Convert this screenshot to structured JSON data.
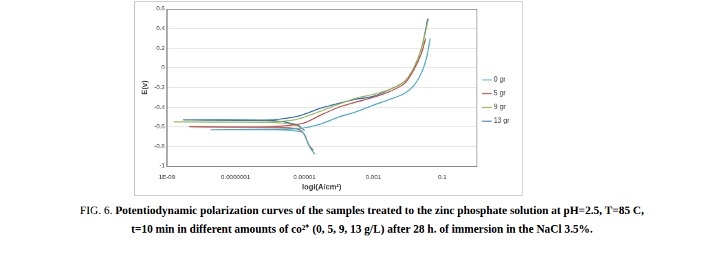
{
  "chart_data": {
    "type": "line",
    "x_label": "logi(A/cm²)",
    "y_label": "E(v)",
    "log": "x",
    "grid": true,
    "legend": "right",
    "xlim": [
      1e-09,
      1
    ],
    "xticks": [
      {
        "value": 1e-09,
        "label": "1E-09"
      },
      {
        "value": 1e-07,
        "label": "0.0000001"
      },
      {
        "value": 1e-05,
        "label": "0.00001"
      },
      {
        "value": 0.001,
        "label": "0.001"
      },
      {
        "value": 0.1,
        "label": "0.1"
      }
    ],
    "ylim": [
      -1,
      0.6
    ],
    "yticks": [
      -1,
      -0.8,
      -0.6,
      -0.4,
      -0.2,
      0,
      0.2,
      0.4,
      0.6
    ],
    "series": [
      {
        "name": "0 gr",
        "color": "#4bacc6",
        "x": [
          2e-05,
          1.5e-05,
          1.1e-05,
          9e-06,
          5e-06,
          1e-06,
          1.9e-08,
          1e-06,
          5e-06,
          1e-05,
          3e-05,
          0.0001,
          0.0003,
          0.001,
          0.003,
          0.008,
          0.015,
          0.025,
          0.035,
          0.045
        ],
        "values": [
          -0.88,
          -0.82,
          -0.72,
          -0.66,
          -0.64,
          -0.63,
          -0.63,
          -0.625,
          -0.62,
          -0.61,
          -0.57,
          -0.5,
          -0.45,
          -0.38,
          -0.32,
          -0.26,
          -0.18,
          -0.05,
          0.1,
          0.3
        ]
      },
      {
        "name": "5 gr",
        "color": "#c0504d",
        "x": [
          1.8e-05,
          1.3e-05,
          1e-05,
          6e-06,
          1e-06,
          4.5e-09,
          1e-06,
          5e-06,
          1e-05,
          3e-05,
          0.0001,
          0.0003,
          0.001,
          0.003,
          0.008,
          0.015,
          0.025,
          0.033
        ],
        "values": [
          -0.84,
          -0.78,
          -0.68,
          -0.62,
          -0.605,
          -0.6,
          -0.6,
          -0.58,
          -0.56,
          -0.48,
          -0.4,
          -0.35,
          -0.3,
          -0.24,
          -0.16,
          -0.02,
          0.15,
          0.3
        ]
      },
      {
        "name": "9 gr",
        "color": "#9bbb59",
        "x": [
          9e-06,
          5e-06,
          1e-06,
          1.6e-09,
          1e-06,
          5e-06,
          1e-05,
          3e-05,
          0.0001,
          0.0003,
          0.001,
          0.003,
          0.008,
          0.015,
          0.025,
          0.04
        ],
        "values": [
          -0.62,
          -0.58,
          -0.555,
          -0.55,
          -0.55,
          -0.53,
          -0.5,
          -0.44,
          -0.37,
          -0.31,
          -0.27,
          -0.22,
          -0.14,
          0,
          0.2,
          0.5
        ]
      },
      {
        "name": "13 gr",
        "color": "#2f6eb5",
        "x": [
          1e-05,
          6e-06,
          1e-06,
          3e-09,
          1e-06,
          5e-06,
          1e-05,
          3e-05,
          0.0001,
          0.0003,
          0.001,
          0.003,
          0.008,
          0.015,
          0.025,
          0.038
        ],
        "values": [
          -0.64,
          -0.58,
          -0.535,
          -0.53,
          -0.53,
          -0.5,
          -0.47,
          -0.41,
          -0.36,
          -0.32,
          -0.29,
          -0.22,
          -0.14,
          0,
          0.2,
          0.5
        ]
      }
    ],
    "caption_label": "FIG. 6.",
    "caption_lines": [
      "Potentiodynamic polarization curves of the samples treated to the zinc phosphate solution at pH=2.5, T=85 C,",
      "t=10 min in different amounts of co²⁺ (0, 5, 9, 13 g/L) after 28 h. of immersion in the NaCl 3.5%."
    ]
  }
}
